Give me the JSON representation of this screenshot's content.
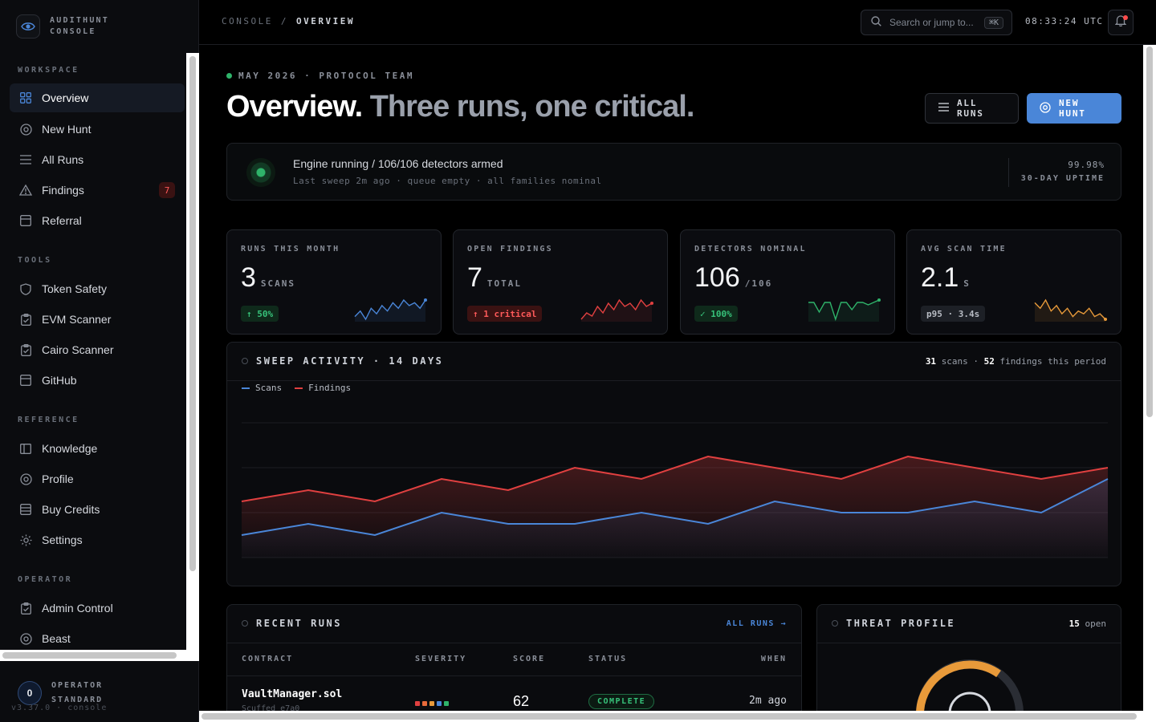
{
  "brand": {
    "line1": "AUDITHUNT",
    "line2": "CONSOLE",
    "icon": "eye-icon"
  },
  "sidebar": {
    "sections": [
      {
        "title": "WORKSPACE",
        "items": [
          {
            "label": "Overview",
            "icon": "grid-icon",
            "active": true
          },
          {
            "label": "New Hunt",
            "icon": "target-icon"
          },
          {
            "label": "All Runs",
            "icon": "list-icon"
          },
          {
            "label": "Findings",
            "icon": "warning-icon",
            "badge": "7"
          },
          {
            "label": "Referral",
            "icon": "card-icon"
          }
        ]
      },
      {
        "title": "TOOLS",
        "items": [
          {
            "label": "Token Safety",
            "icon": "shield-icon"
          },
          {
            "label": "EVM Scanner",
            "icon": "clipboard-check-icon"
          },
          {
            "label": "Cairo Scanner",
            "icon": "clipboard-check-icon"
          },
          {
            "label": "GitHub",
            "icon": "card-icon"
          }
        ]
      },
      {
        "title": "REFERENCE",
        "items": [
          {
            "label": "Knowledge",
            "icon": "book-icon"
          },
          {
            "label": "Profile",
            "icon": "target-icon"
          },
          {
            "label": "Buy Credits",
            "icon": "wallet-icon"
          },
          {
            "label": "Settings",
            "icon": "sun-gear-icon"
          }
        ]
      },
      {
        "title": "OPERATOR",
        "items": [
          {
            "label": "Admin Control",
            "icon": "clipboard-check-icon"
          },
          {
            "label": "Beast",
            "icon": "target-icon"
          }
        ]
      }
    ]
  },
  "operator": {
    "avatar": "0",
    "line1": "OPERATOR",
    "line2": "STANDARD",
    "version": "v3.37.0 · console"
  },
  "topbar": {
    "crumb_root": "CONSOLE",
    "crumb_sep": "/",
    "crumb_current": "OVERVIEW",
    "search_placeholder": "Search or jump to...",
    "search_kbd": "⌘K",
    "clock": "08:33:24 UTC"
  },
  "hero": {
    "eyebrow": "MAY 2026 · PROTOCOL TEAM",
    "title": "Overview.",
    "title_muted": "Three runs, one critical.",
    "btn_all_runs": "ALL RUNS",
    "btn_new_hunt": "NEW HUNT"
  },
  "engine": {
    "title": "Engine running  /  106/106 detectors armed",
    "subtitle": "Last sweep 2m ago · queue empty · all families nominal",
    "uptime_value": "99.98%",
    "uptime_label": "30-DAY UPTIME"
  },
  "stats": [
    {
      "label": "RUNS THIS MONTH",
      "value": "3",
      "unit": "SCANS",
      "chip": "↑ 50%",
      "chip_kind": "green",
      "spark_color": "#4a86d8",
      "spark": [
        3,
        5,
        2,
        6,
        4,
        7,
        5,
        8,
        6,
        9,
        7,
        8,
        6,
        9
      ]
    },
    {
      "label": "OPEN FINDINGS",
      "value": "7",
      "unit": "TOTAL",
      "chip": "↑ 1 critical",
      "chip_kind": "red",
      "spark_color": "#e04040",
      "spark": [
        2,
        4,
        3,
        6,
        4,
        7,
        5,
        8,
        6,
        7,
        5,
        8,
        6,
        7
      ]
    },
    {
      "label": "DETECTORS NOMINAL",
      "value": "106",
      "unit": "/106",
      "chip": "✓ 100%",
      "chip_kind": "green",
      "spark_color": "#2fb36a",
      "spark": [
        9,
        9,
        5,
        9,
        9,
        2,
        9,
        9,
        6,
        9,
        9,
        8,
        9,
        10
      ]
    },
    {
      "label": "AVG SCAN TIME",
      "value": "2.1",
      "unit": "S",
      "chip": "p95 · 3.4s",
      "chip_kind": "gray",
      "spark_color": "#e89a3a",
      "spark": [
        8,
        6,
        9,
        5,
        7,
        4,
        6,
        3,
        5,
        4,
        6,
        3,
        4,
        2
      ]
    }
  ],
  "sweep": {
    "title": "SWEEP ACTIVITY · 14 DAYS",
    "scans_total": "31",
    "scans_label": "scans ·",
    "findings_total": "52",
    "findings_label": "findings this period",
    "legend_scans": "Scans",
    "legend_findings": "Findings"
  },
  "chart_data": {
    "type": "area",
    "x": [
      1,
      2,
      3,
      4,
      5,
      6,
      7,
      8,
      9,
      10,
      11,
      12,
      13,
      14
    ],
    "ylim": [
      0,
      6
    ],
    "grid": true,
    "series": [
      {
        "name": "Scans",
        "color": "#4a86d8",
        "values": [
          1,
          1.5,
          1,
          2,
          1.5,
          1.5,
          2,
          1.5,
          2.5,
          2,
          2,
          2.5,
          2,
          3.5
        ]
      },
      {
        "name": "Findings",
        "color": "#e04040",
        "values": [
          2.5,
          3,
          2.5,
          3.5,
          3,
          4,
          3.5,
          4.5,
          4,
          3.5,
          4.5,
          4,
          3.5,
          4
        ]
      }
    ]
  },
  "recent": {
    "title": "RECENT RUNS",
    "link": "ALL RUNS →",
    "headers": [
      "CONTRACT",
      "SEVERITY",
      "SCORE",
      "STATUS",
      "WHEN"
    ],
    "rows": [
      {
        "contract": "VaultManager.sol",
        "sub": "Scuffed e7a0",
        "severity": [
          "#e04040",
          "#e86a3a",
          "#e89a3a",
          "#4a86d8",
          "#2fb36a"
        ],
        "score": "62",
        "status": "COMPLETE",
        "when": "2m ago"
      }
    ]
  },
  "threat": {
    "title": "THREAT PROFILE",
    "open_count": "15",
    "open_label": "open"
  },
  "colors": {
    "accent": "#4a86d8",
    "danger": "#e04040",
    "success": "#2fb36a",
    "warning": "#e89a3a"
  }
}
